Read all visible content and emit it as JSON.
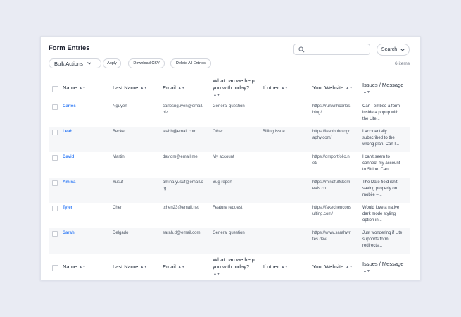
{
  "page": {
    "title": "Form Entries",
    "search_placeholder": "",
    "search_button": "Search",
    "bulk_actions": "Bulk Actions",
    "apply": "Apply",
    "download_csv": "Download CSV",
    "delete_all": "Delete All Entries",
    "items_count": "6 items"
  },
  "columns": {
    "name": "Name",
    "last_name": "Last Name",
    "email": "Email",
    "help_line1": "What can we help",
    "help_line2": "you with today?",
    "if_other": "If other",
    "website": "Your Website",
    "issues": "Issues / Message"
  },
  "rows": [
    {
      "name": "Carlos",
      "last": "Nguyen",
      "email": "carlosnguyen@email.",
      "email2": "biz",
      "help": "General question",
      "other": "",
      "web": "https://runwithcarlos.",
      "web2": "blog/",
      "msg1": "Can I embed a form",
      "msg2": "inside a popup with",
      "msg3": "the Lite..."
    },
    {
      "name": "Leah",
      "last": "Becker",
      "email": "leahb@email.com",
      "email2": "",
      "help": "Other",
      "other": "Billing issue",
      "web": "https://leahbphotogr",
      "web2": "aphy.com/",
      "msg1": "I accidentally",
      "msg2": "subscribed to the",
      "msg3": "wrong plan. Can I..."
    },
    {
      "name": "David",
      "last": "Martin",
      "email": "davidm@email.me",
      "email2": "",
      "help": "My account",
      "other": "",
      "web": "https://dmportfolio.n",
      "web2": "et/",
      "msg1": "I can't seem to",
      "msg2": "connect my account",
      "msg3": "to Stripe. Can..."
    },
    {
      "name": "Amina",
      "last": "Yusuf",
      "email": "amina.yusuf@email.o",
      "email2": "rg",
      "help": "Bug report",
      "other": "",
      "web": "https://mindfulfskem",
      "web2": "eals.co",
      "msg1": "The Date field isn't",
      "msg2": "saving properly on",
      "msg3": "mobile –..."
    },
    {
      "name": "Tyler",
      "last": "Chen",
      "email": "tchen23@email.net",
      "email2": "",
      "help": "Feature request",
      "other": "",
      "web": "https://fakechencons",
      "web2": "ulting.com/",
      "msg1": "Would love a native",
      "msg2": "dark mode styling",
      "msg3": "option in..."
    },
    {
      "name": "Sarah",
      "last": "Delgado",
      "email": "sarah.d@email.com",
      "email2": "",
      "help": "General question",
      "other": "",
      "web": "https://www.sarahwri",
      "web2": "tes.dev/",
      "msg1": "Just wondering if Lite",
      "msg2": "supports form",
      "msg3": "redirects..."
    }
  ],
  "icons": {
    "search": "search-icon",
    "chevron": "chevron-down-icon",
    "sort": "sort-icon"
  },
  "colors": {
    "accent": "#3b82f6",
    "background": "#e9ebf3",
    "row_alt": "#f6f7f9"
  }
}
